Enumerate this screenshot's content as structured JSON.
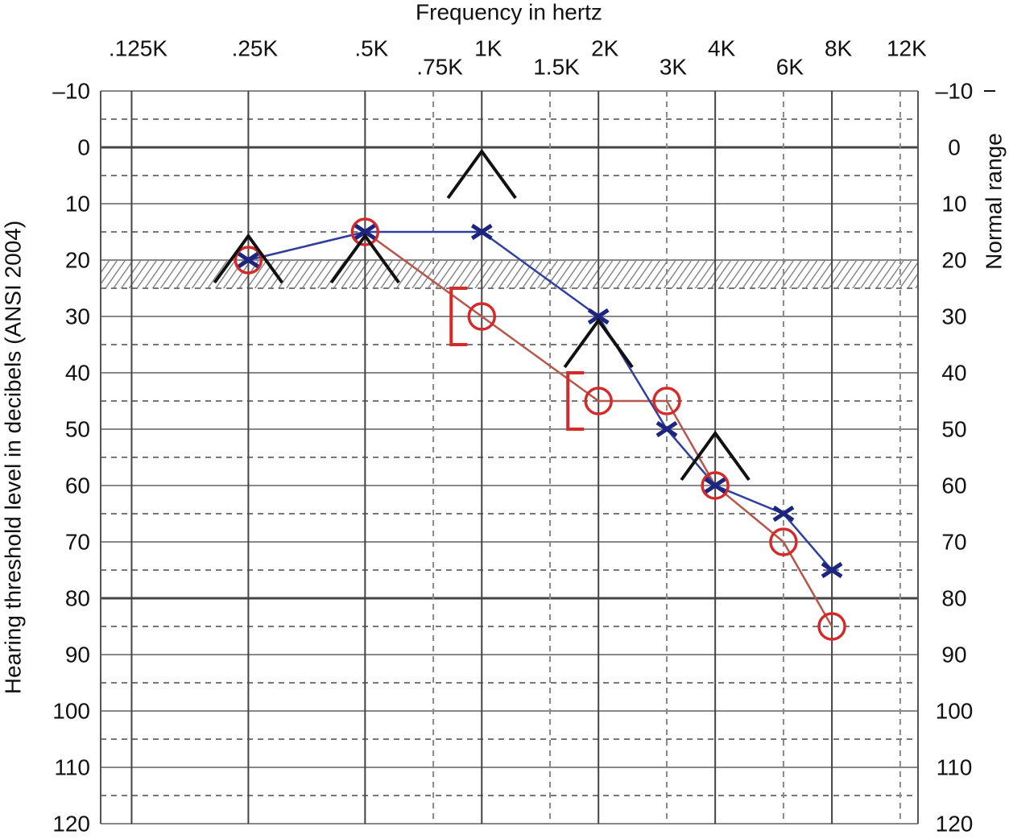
{
  "chart_data": {
    "type": "audiogram",
    "title": "Frequency in hertz",
    "y_label": "Hearing threshold level in decibels (ANSI 2004)",
    "normal_range_label": "Normal range",
    "normal_range": [
      20,
      25
    ],
    "xscale": "log",
    "xlim": [
      104,
      13340
    ],
    "xticks": [
      {
        "value": 125,
        "label": ".125K"
      },
      {
        "value": 250,
        "label": ".25K"
      },
      {
        "value": 500,
        "label": ".5K"
      },
      {
        "value": 750,
        "label": ".75K"
      },
      {
        "value": 1000,
        "label": "1K"
      },
      {
        "value": 1500,
        "label": "1.5K"
      },
      {
        "value": 2000,
        "label": "2K"
      },
      {
        "value": 3000,
        "label": "3K"
      },
      {
        "value": 4000,
        "label": "4K"
      },
      {
        "value": 6000,
        "label": "6K"
      },
      {
        "value": 8000,
        "label": "8K"
      },
      {
        "value": 12000,
        "label": "12K"
      }
    ],
    "ylim": [
      -10,
      120
    ],
    "yinverted": true,
    "yticks": [
      {
        "value": -10,
        "label": "–10"
      },
      0,
      10,
      20,
      30,
      40,
      50,
      60,
      70,
      80,
      90,
      100,
      110,
      120
    ],
    "minor_yticks": [
      -5,
      5,
      15,
      25,
      35,
      45,
      55,
      65,
      75,
      85,
      95,
      105,
      115
    ],
    "grid": true,
    "series": [
      {
        "symbol": "circle",
        "color": "#d42a2a",
        "line_color": "#b5574a",
        "line": true,
        "x": [
          250,
          500,
          1000,
          2000,
          3000,
          4000,
          6000,
          8000
        ],
        "values": [
          20,
          15,
          30,
          45,
          45,
          60,
          70,
          85
        ]
      },
      {
        "symbol": "cross",
        "color": "#1c2580",
        "line_color": "#3040a0",
        "line": true,
        "x": [
          250,
          500,
          1000,
          2000,
          3000,
          4000,
          6000,
          8000
        ],
        "values": [
          20,
          15,
          15,
          30,
          50,
          60,
          65,
          75
        ]
      },
      {
        "symbol": "bracket",
        "color": "#d42a2a",
        "line": false,
        "x": [
          1000,
          2000
        ],
        "values": [
          30,
          45
        ]
      },
      {
        "symbol": "caret",
        "color": "#111111",
        "line": false,
        "x": [
          250,
          500,
          1000,
          2000,
          4000
        ],
        "values": [
          20,
          20,
          5,
          35,
          55
        ]
      }
    ]
  }
}
